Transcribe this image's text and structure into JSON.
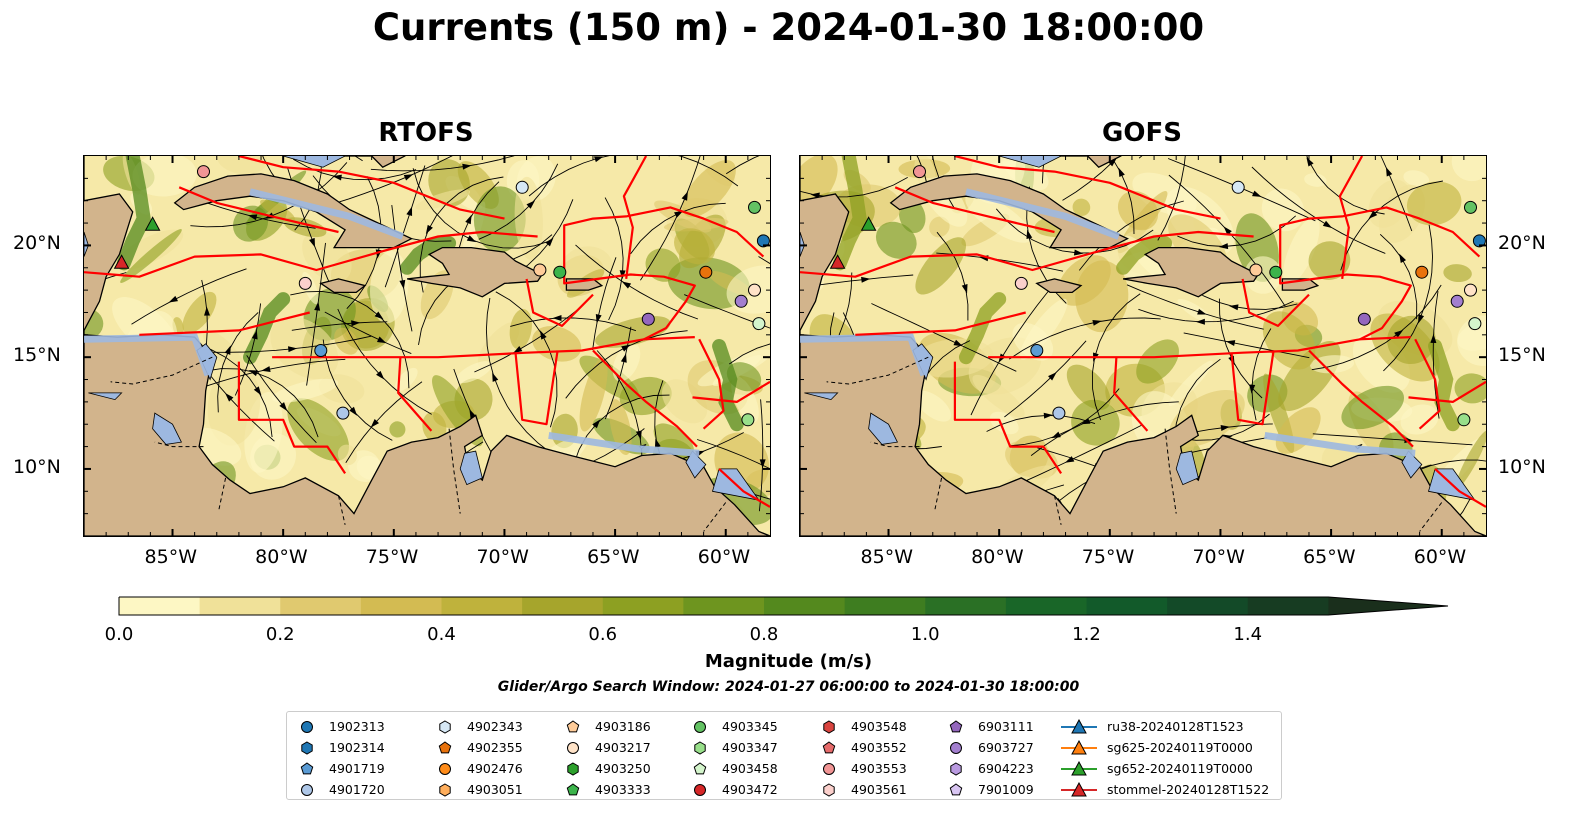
{
  "title": "Currents (150 m) - 2024-01-30 18:00:00",
  "panels": [
    {
      "title": "RTOFS"
    },
    {
      "title": "GOFS"
    }
  ],
  "lon_ticks": [
    "85°W",
    "80°W",
    "75°W",
    "70°W",
    "65°W",
    "60°W"
  ],
  "lat_ticks": [
    "20°N",
    "15°N",
    "10°N"
  ],
  "colorbar": {
    "label": "Magnitude (m/s)",
    "ticks": [
      "0.0",
      "0.2",
      "0.4",
      "0.6",
      "0.8",
      "1.0",
      "1.2",
      "1.4"
    ],
    "range": [
      0.0,
      1.6
    ],
    "colors": [
      "#fdf7c4",
      "#f0e199",
      "#e0c96f",
      "#d3bb52",
      "#bfb23c",
      "#a6a52c",
      "#8da022",
      "#6e951f",
      "#54891e",
      "#3e7d20",
      "#2a7025",
      "#196628",
      "#125a2a",
      "#134a28",
      "#173c22",
      "#1a2f1c"
    ]
  },
  "search_window": "Glider/Argo Search Window: 2024-01-27 06:00:00 to 2024-01-30 18:00:00",
  "legend": [
    [
      {
        "label": "1902313",
        "marker": "circle",
        "color": "#1f77b4"
      },
      {
        "label": "1902314",
        "marker": "hexagon",
        "color": "#1f77b4"
      },
      {
        "label": "4901719",
        "marker": "pentagon",
        "color": "#5a9bd4"
      },
      {
        "label": "4901720",
        "marker": "circle",
        "color": "#aec7e8"
      }
    ],
    [
      {
        "label": "4902343",
        "marker": "hexagon",
        "color": "#d6e8f5"
      },
      {
        "label": "4902355",
        "marker": "pentagon",
        "color": "#e8720c"
      },
      {
        "label": "4902476",
        "marker": "circle",
        "color": "#ff8c1a"
      },
      {
        "label": "4903051",
        "marker": "hexagon",
        "color": "#ffae5c"
      }
    ],
    [
      {
        "label": "4903186",
        "marker": "pentagon",
        "color": "#ffcc99"
      },
      {
        "label": "4903217",
        "marker": "circle",
        "color": "#ffe3c8"
      },
      {
        "label": "4903250",
        "marker": "hexagon",
        "color": "#2ca02c"
      },
      {
        "label": "4903333",
        "marker": "pentagon",
        "color": "#3cb44b"
      }
    ],
    [
      {
        "label": "4903345",
        "marker": "circle",
        "color": "#63c263"
      },
      {
        "label": "4903347",
        "marker": "hexagon",
        "color": "#98df8a"
      },
      {
        "label": "4903458",
        "marker": "pentagon",
        "color": "#d4f5cc"
      },
      {
        "label": "4903472",
        "marker": "circle",
        "color": "#d62728"
      }
    ],
    [
      {
        "label": "4903548",
        "marker": "hexagon",
        "color": "#d9443f"
      },
      {
        "label": "4903552",
        "marker": "pentagon",
        "color": "#e66b6b"
      },
      {
        "label": "4903553",
        "marker": "circle",
        "color": "#f19595"
      },
      {
        "label": "4903561",
        "marker": "hexagon",
        "color": "#fbd0cc"
      }
    ],
    [
      {
        "label": "6903111",
        "marker": "pentagon",
        "color": "#9467bd"
      },
      {
        "label": "6903727",
        "marker": "circle",
        "color": "#a37fcf"
      },
      {
        "label": "6904223",
        "marker": "hexagon",
        "color": "#b99ae0"
      },
      {
        "label": "7901009",
        "marker": "pentagon",
        "color": "#d8c5f2"
      }
    ],
    [
      {
        "label": "ru38-20240128T1523",
        "marker": "triangle-line",
        "color": "#1f77b4"
      },
      {
        "label": "sg625-20240119T0000",
        "marker": "triangle-line",
        "color": "#ff7f0e"
      },
      {
        "label": "sg652-20240119T0000",
        "marker": "triangle-line",
        "color": "#2ca02c"
      },
      {
        "label": "stommel-20240128T1522",
        "marker": "triangle-line",
        "color": "#d62728"
      }
    ]
  ],
  "map_extent": {
    "lon": [
      -89,
      -58
    ],
    "lat": [
      7,
      24
    ]
  },
  "map_colors": {
    "land": "#d2b48c",
    "water": "#9db8e0",
    "eez": "#ff0000",
    "streamline": "#000000"
  },
  "floats": [
    {
      "id": "1902313",
      "lon": -58.3,
      "lat": 20.2
    },
    {
      "id": "4901719",
      "lon": -78.3,
      "lat": 15.3
    },
    {
      "id": "4901720",
      "lon": -77.3,
      "lat": 12.5
    },
    {
      "id": "4902343",
      "lon": -69.2,
      "lat": 22.6
    },
    {
      "id": "4902355",
      "lon": -60.9,
      "lat": 18.8
    },
    {
      "id": "4903186",
      "lon": -68.4,
      "lat": 18.9
    },
    {
      "id": "4903217",
      "lon": -58.7,
      "lat": 18.0
    },
    {
      "id": "4903333",
      "lon": -67.5,
      "lat": 18.8
    },
    {
      "id": "4903345",
      "lon": -58.7,
      "lat": 21.7
    },
    {
      "id": "4903347",
      "lon": -59.0,
      "lat": 12.2
    },
    {
      "id": "4903458",
      "lon": -58.5,
      "lat": 16.5
    },
    {
      "id": "4903553",
      "lon": -83.6,
      "lat": 23.3
    },
    {
      "id": "4903561",
      "lon": -79.0,
      "lat": 18.3
    },
    {
      "id": "6903111",
      "lon": -63.5,
      "lat": 16.7
    },
    {
      "id": "6903727",
      "lon": -59.3,
      "lat": 17.5
    }
  ],
  "gliders": [
    {
      "id": "sg652-20240119T0000",
      "lon": -85.9,
      "lat": 20.9
    },
    {
      "id": "stommel-20240128T1522",
      "lon": -87.3,
      "lat": 19.2
    }
  ]
}
